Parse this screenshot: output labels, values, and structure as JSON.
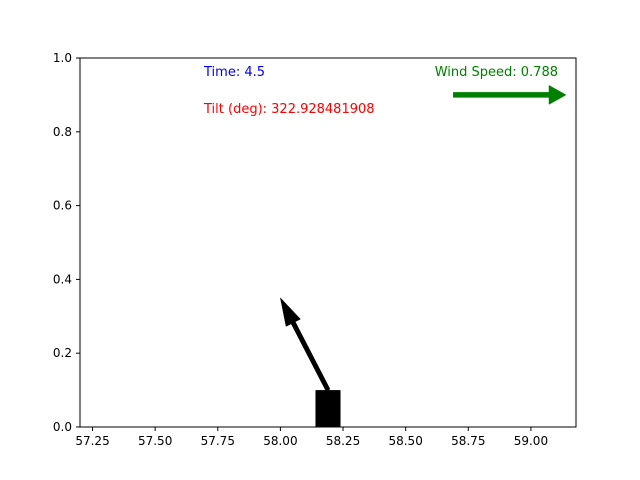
{
  "chart_data": {
    "type": "scatter",
    "title": "",
    "xlabel": "",
    "ylabel": "",
    "xlim": [
      57.2,
      59.18
    ],
    "ylim": [
      0.0,
      1.0
    ],
    "xticks": [
      "57.25",
      "57.50",
      "57.75",
      "58.00",
      "58.25",
      "58.50",
      "58.75",
      "59.00"
    ],
    "yticks": [
      "0.0",
      "0.2",
      "0.4",
      "0.6",
      "0.8",
      "1.0"
    ],
    "annotations": {
      "time": "Time: 4.5",
      "tilt": "Tilt (deg): 322.928481908",
      "wind": "Wind Speed: 0.788"
    },
    "colors": {
      "time": "#0000ff",
      "tilt": "#ff0000",
      "wind": "#008000",
      "body": "#000000"
    },
    "body": {
      "x_center": 58.19,
      "width": 0.1,
      "y_top": 0.1
    },
    "tilt_arrow": {
      "x_start": 58.19,
      "y_start": 0.1,
      "x_end": 58.0,
      "y_end": 0.35
    },
    "wind_arrow": {
      "x_start": 58.69,
      "x_end": 59.14,
      "y": 0.9
    }
  }
}
